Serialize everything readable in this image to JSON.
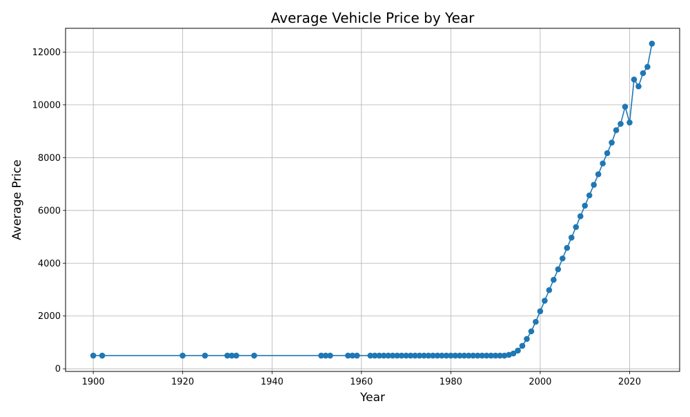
{
  "chart_data": {
    "type": "line",
    "title": "Average Vehicle Price by Year",
    "xlabel": "Year",
    "ylabel": "Average Price",
    "xlim": [
      1893.8,
      2031.2
    ],
    "ylim": [
      -100,
      12900
    ],
    "xticks": [
      1900,
      1920,
      1940,
      1960,
      1980,
      2000,
      2020
    ],
    "yticks": [
      0,
      2000,
      4000,
      6000,
      8000,
      10000,
      12000
    ],
    "grid": true,
    "marker": "circle",
    "series": [
      {
        "color": "#1f77b4",
        "x": [
          1900,
          1902,
          1920,
          1925,
          1930,
          1931,
          1932,
          1936,
          1951,
          1952,
          1953,
          1957,
          1958,
          1959,
          1962,
          1963,
          1964,
          1965,
          1966,
          1967,
          1968,
          1969,
          1970,
          1971,
          1972,
          1973,
          1974,
          1975,
          1976,
          1977,
          1978,
          1979,
          1980,
          1981,
          1982,
          1983,
          1984,
          1985,
          1986,
          1987,
          1988,
          1989,
          1990,
          1991,
          1992,
          1993,
          1994,
          1995,
          1996,
          1997,
          1998,
          1999,
          2000,
          2001,
          2002,
          2003,
          2004,
          2005,
          2006,
          2007,
          2008,
          2009,
          2010,
          2011,
          2012,
          2013,
          2014,
          2015,
          2016,
          2017,
          2018,
          2019,
          2020,
          2021,
          2022,
          2023,
          2024,
          2025
        ],
        "y": [
          500,
          500,
          500,
          500,
          500,
          500,
          500,
          500,
          500,
          500,
          500,
          500,
          500,
          500,
          500,
          500,
          500,
          500,
          500,
          500,
          500,
          500,
          500,
          500,
          500,
          500,
          500,
          500,
          500,
          500,
          500,
          500,
          500,
          500,
          500,
          500,
          500,
          500,
          500,
          500,
          500,
          500,
          500,
          500,
          500,
          530,
          580,
          690,
          870,
          1130,
          1420,
          1780,
          2180,
          2580,
          2980,
          3370,
          3770,
          4180,
          4580,
          4970,
          5370,
          5780,
          6180,
          6570,
          6970,
          7370,
          7780,
          8170,
          8570,
          9040,
          9280,
          9930,
          9330,
          10960,
          10700,
          11200,
          11440,
          12320
        ]
      }
    ]
  }
}
